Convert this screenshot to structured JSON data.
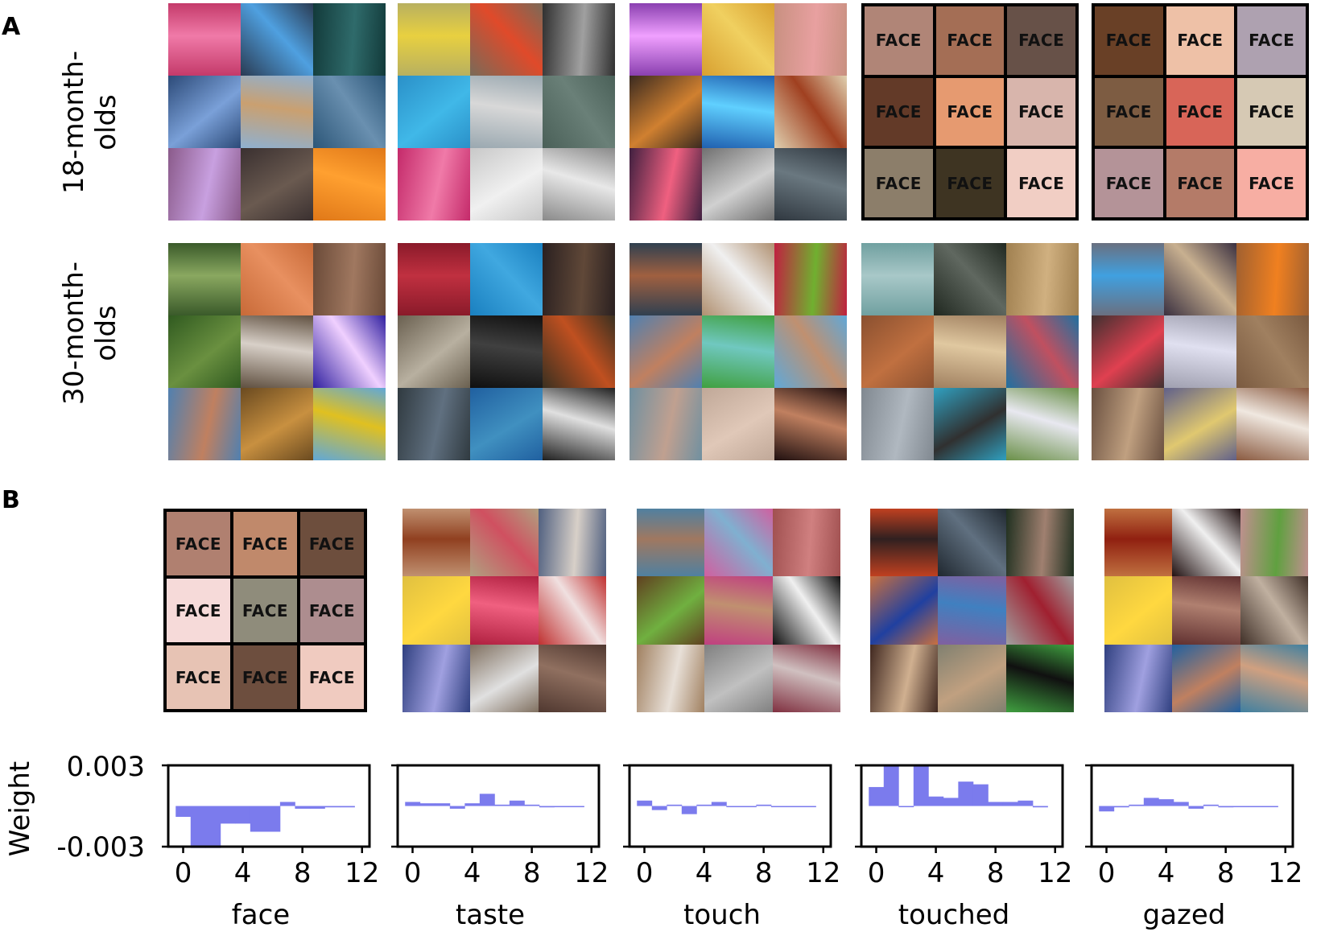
{
  "panel_a": {
    "letter": "A",
    "rows": [
      {
        "label_line1": "18-month-",
        "label_line2": "olds",
        "grids": [
          {
            "kind": "photo",
            "tiles": [
              [
                "#c43a6a",
                "#f07aa8"
              ],
              [
                "#2a3b52",
                "#4fa0e0"
              ],
              [
                "#123a3a",
                "#2f6b6b"
              ],
              [
                "#2c4a78",
                "#7aa0d8"
              ],
              [
                "#8fb0d0",
                "#caa070"
              ],
              [
                "#2c5678",
                "#6a90b0"
              ],
              [
                "#8a5a8a",
                "#c8a0e0"
              ],
              [
                "#3a3030",
                "#6a5a50"
              ],
              [
                "#e07818",
                "#ffa030"
              ]
            ]
          },
          {
            "kind": "photo",
            "tiles": [
              [
                "#b8b060",
                "#e8d040"
              ],
              [
                "#7a6a58",
                "#e04a2a"
              ],
              [
                "#303030",
                "#a0a0a0"
              ],
              [
                "#2a90c8",
                "#40b8e8"
              ],
              [
                "#9aa8b0",
                "#d8d8d8"
              ],
              [
                "#4a6058",
                "#6a8078"
              ],
              [
                "#c42a6a",
                "#f07aa8"
              ],
              [
                "#c8c8c8",
                "#f0f0f0"
              ],
              [
                "#8a8a8a",
                "#e8e8e8"
              ]
            ]
          },
          {
            "kind": "photo",
            "tiles": [
              [
                "#8a40b0",
                "#f0a0ff"
              ],
              [
                "#d8a030",
                "#f0d060"
              ],
              [
                "#c89080",
                "#e8a0a0"
              ],
              [
                "#3a2a20",
                "#d08030"
              ],
              [
                "#2060b0",
                "#60d0ff"
              ],
              [
                "#e0d0b0",
                "#a04020"
              ],
              [
                "#402040",
                "#f06080"
              ],
              [
                "#707070",
                "#d0d0d0"
              ],
              [
                "#303840",
                "#6a7880"
              ]
            ]
          },
          {
            "kind": "face",
            "tiles": [
              "#b08577",
              "#a46e55",
              "#675148",
              "#633a28",
              "#e69a70",
              "#d8b5ac",
              "#8c7e6a",
              "#3e3422",
              "#f1cec4"
            ]
          },
          {
            "kind": "face",
            "tiles": [
              "#694026",
              "#eec1a7",
              "#aea1b0",
              "#7d5c42",
              "#d86558",
              "#d6c9b4",
              "#b49398",
              "#b47b68",
              "#f7aea3"
            ]
          }
        ]
      },
      {
        "label_line1": "30-month-",
        "label_line2": "olds",
        "grids": [
          {
            "kind": "photo",
            "tiles": [
              [
                "#3a5a2a",
                "#8aa860"
              ],
              [
                "#c86a38",
                "#e89060"
              ],
              [
                "#6a4a38",
                "#a07860"
              ],
              [
                "#305a20",
                "#6a9040"
              ],
              [
                "#605040",
                "#d8d0c8"
              ],
              [
                "#3020a0",
                "#f0d0ff"
              ],
              [
                "#5080b0",
                "#c08060"
              ],
              [
                "#6a4a20",
                "#c89040"
              ],
              [
                "#60a8d8",
                "#e0c020"
              ]
            ]
          },
          {
            "kind": "photo",
            "tiles": [
              [
                "#8a1a2a",
                "#c03040"
              ],
              [
                "#1a80c0",
                "#40a8e0"
              ],
              [
                "#2a2020",
                "#604838"
              ],
              [
                "#6a6050",
                "#b8b0a0"
              ],
              [
                "#101010",
                "#404040"
              ],
              [
                "#3a3020",
                "#c05020"
              ],
              [
                "#303a40",
                "#607080"
              ],
              [
                "#2060a0",
                "#4090c0"
              ],
              [
                "#202020",
                "#e0e0e0"
              ]
            ]
          },
          {
            "kind": "photo",
            "tiles": [
              [
                "#304050",
                "#a06040"
              ],
              [
                "#b09070",
                "#f0f0f0"
              ],
              [
                "#c02040",
                "#70b030"
              ],
              [
                "#5080b0",
                "#c08060"
              ],
              [
                "#40a040",
                "#70c8c0"
              ],
              [
                "#60a8d8",
                "#c09070"
              ],
              [
                "#7090a0",
                "#c0a090"
              ],
              [
                "#c0a898",
                "#e0c8b8"
              ],
              [
                "#201010",
                "#c08060"
              ]
            ]
          },
          {
            "kind": "photo",
            "tiles": [
              [
                "#70a0a0",
                "#a8c8c8"
              ],
              [
                "#202820",
                "#606860"
              ],
              [
                "#a08050",
                "#d0b080"
              ],
              [
                "#8a5030",
                "#c07040"
              ],
              [
                "#a08060",
                "#e0c8a0"
              ],
              [
                "#2070a0",
                "#c05060"
              ],
              [
                "#808890",
                "#b0b8c0"
              ],
              [
                "#30a0c0",
                "#303030"
              ],
              [
                "#6a9048",
                "#e8e8f0"
              ]
            ]
          },
          {
            "kind": "photo",
            "tiles": [
              [
                "#6a7080",
                "#40a0e0"
              ],
              [
                "#3a3040",
                "#c8b090"
              ],
              [
                "#a06030",
                "#f08020"
              ],
              [
                "#403030",
                "#e04050"
              ],
              [
                "#a0a0b0",
                "#e0e0f0"
              ],
              [
                "#7a5a40",
                "#a08060"
              ],
              [
                "#6a5040",
                "#c0a080"
              ],
              [
                "#60608a",
                "#e0c870"
              ],
              [
                "#8a5a40",
                "#f0e8e0"
              ]
            ]
          }
        ]
      }
    ]
  },
  "panel_b": {
    "letter": "B",
    "grids": [
      {
        "kind": "face",
        "tiles": [
          "#b08070",
          "#c0896b",
          "#6d4e3d",
          "#f6dad9",
          "#8f8c7b",
          "#ad8d8f",
          "#e7c3b4",
          "#6d4e3e",
          "#f0cbc0"
        ]
      },
      {
        "kind": "photo",
        "tiles": [
          [
            "#c09070",
            "#904020"
          ],
          [
            "#b0a080",
            "#d05060"
          ],
          [
            "#506080",
            "#d8d0c8"
          ],
          [
            "#e0c040",
            "#ffd840"
          ],
          [
            "#b02040",
            "#f06080"
          ],
          [
            "#c03030",
            "#f0e0e0"
          ],
          [
            "#304080",
            "#a0a0e0"
          ],
          [
            "#807060",
            "#e0e0e0"
          ],
          [
            "#503830",
            "#907060"
          ]
        ]
      },
      {
        "kind": "photo",
        "tiles": [
          [
            "#5080a0",
            "#a07860"
          ],
          [
            "#d060a0",
            "#80b0d0"
          ],
          [
            "#a05050",
            "#d08080"
          ],
          [
            "#604020",
            "#70b040"
          ],
          [
            "#c04080",
            "#c09070"
          ],
          [
            "#101010",
            "#f0f0f0"
          ],
          [
            "#a08060",
            "#e8e0d8"
          ],
          [
            "#808080",
            "#c0c0c0"
          ],
          [
            "#803040",
            "#d0c0c0"
          ]
        ]
      },
      {
        "kind": "photo",
        "tiles": [
          [
            "#c04020",
            "#302020"
          ],
          [
            "#202830",
            "#607080"
          ],
          [
            "#203020",
            "#a08070"
          ],
          [
            "#c87040",
            "#2040a0"
          ],
          [
            "#8060a0",
            "#4080c0"
          ],
          [
            "#a0a0a0",
            "#a02030"
          ],
          [
            "#402820",
            "#d0b090"
          ],
          [
            "#808070",
            "#c0a080"
          ],
          [
            "#40a040",
            "#101010"
          ]
        ]
      },
      {
        "kind": "photo",
        "tiles": [
          [
            "#c07040",
            "#902010"
          ],
          [
            "#201010",
            "#f0f0f0"
          ],
          [
            "#c09090",
            "#60a040"
          ],
          [
            "#e0c040",
            "#ffd840"
          ],
          [
            "#603030",
            "#b08070"
          ],
          [
            "#403028",
            "#c0b0a0"
          ],
          [
            "#304080",
            "#a0a0e0"
          ],
          [
            "#2060a0",
            "#c08060"
          ],
          [
            "#4080a0",
            "#d0a080"
          ]
        ]
      }
    ],
    "charts": [
      {
        "name": "face",
        "ylim": [
          -0.003,
          0.003
        ],
        "xlim": [
          -1,
          12.5
        ],
        "x": [
          0,
          1,
          2,
          3,
          4,
          5,
          6,
          7,
          8,
          9,
          10,
          11
        ],
        "y": [
          -0.0008,
          -0.0031,
          -0.0031,
          -0.0013,
          -0.0013,
          -0.0019,
          -0.0019,
          0.0003,
          -0.0002,
          -0.0002,
          -0.0001,
          -0.0001
        ]
      },
      {
        "name": "taste",
        "ylim": [
          -0.003,
          0.003
        ],
        "xlim": [
          -1,
          12.5
        ],
        "x": [
          0,
          1,
          2,
          3,
          4,
          5,
          6,
          7,
          8,
          9,
          10,
          11
        ],
        "y": [
          0.0003,
          0.0002,
          0.0002,
          -0.0002,
          0.0002,
          0.0009,
          0.0001,
          0.0004,
          0.0001,
          -0.0001,
          0.0,
          0.0
        ]
      },
      {
        "name": "touch",
        "ylim": [
          -0.003,
          0.003
        ],
        "xlim": [
          -1,
          12.5
        ],
        "x": [
          0,
          1,
          2,
          3,
          4,
          5,
          6,
          7,
          8,
          9,
          10,
          11
        ],
        "y": [
          0.0004,
          -0.0003,
          0.0001,
          -0.0006,
          0.0001,
          0.0003,
          0.0,
          0.0,
          0.0001,
          0.0,
          0.0,
          0.0
        ]
      },
      {
        "name": "touched",
        "ylim": [
          -0.003,
          0.003
        ],
        "xlim": [
          -1,
          12.5
        ],
        "x": [
          0,
          1,
          2,
          3,
          4,
          5,
          6,
          7,
          8,
          9,
          10,
          11
        ],
        "y": [
          0.0014,
          0.003,
          0.0,
          0.003,
          0.0007,
          0.0006,
          0.0018,
          0.0016,
          0.0003,
          0.0003,
          0.0004,
          -0.0001
        ]
      },
      {
        "name": "gazed",
        "ylim": [
          -0.003,
          0.003
        ],
        "xlim": [
          -1,
          12.5
        ],
        "x": [
          0,
          1,
          2,
          3,
          4,
          5,
          6,
          7,
          8,
          9,
          10,
          11
        ],
        "y": [
          -0.0004,
          -0.0001,
          0.0001,
          0.0006,
          0.0005,
          0.0003,
          -0.0002,
          0.0001,
          -0.0001,
          0.0,
          0.0,
          0.0
        ]
      }
    ],
    "y_axis_label": "Weight",
    "y_tick_top": "0.003",
    "y_tick_bottom": "-0.003",
    "x_tick_labels": [
      "0",
      "4",
      "8",
      "12"
    ],
    "x_tick_values": [
      0,
      4,
      8,
      12
    ]
  },
  "face_label": "FACE",
  "bar_color": "#7b7bed"
}
